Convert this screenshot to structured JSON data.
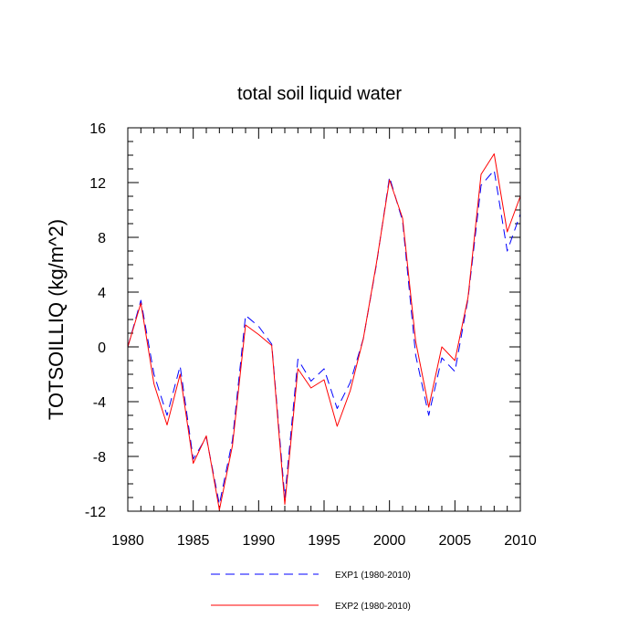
{
  "chart_data": {
    "type": "line",
    "title": "total soil liquid water",
    "xlabel": "",
    "ylabel": "TOTSOILLIQ  (kg/m^2)",
    "xlim": [
      1980,
      2010
    ],
    "ylim": [
      -12,
      16
    ],
    "x_ticks": [
      1980,
      1985,
      1990,
      1995,
      2000,
      2005,
      2010
    ],
    "y_ticks": [
      -12,
      -8,
      -4,
      0,
      4,
      8,
      12,
      16
    ],
    "x_tick_labels": [
      "1980",
      "1985",
      "1990",
      "1995",
      "2000",
      "2005",
      "2010"
    ],
    "y_tick_labels": [
      "-12",
      "-8",
      "-4",
      "0",
      "4",
      "8",
      "12",
      "16"
    ],
    "grid": false,
    "legend_position": "bottom",
    "x": [
      1980,
      1981,
      1982,
      1983,
      1984,
      1985,
      1986,
      1987,
      1988,
      1989,
      1990,
      1991,
      1992,
      1993,
      1994,
      1995,
      1996,
      1997,
      1998,
      1999,
      2000,
      2001,
      2002,
      2003,
      2004,
      2005,
      2006,
      2007,
      2008,
      2009,
      2010
    ],
    "series": [
      {
        "name": "EXP1 (1980-2010)",
        "color": "#0000ff",
        "dash": "dashed",
        "values": [
          0.0,
          3.4,
          -2.0,
          -5.0,
          -1.4,
          -8.2,
          -6.6,
          -11.5,
          -6.8,
          2.3,
          1.5,
          0.2,
          -11.0,
          -0.9,
          -2.5,
          -1.6,
          -4.5,
          -2.6,
          0.6,
          6.0,
          12.4,
          9.2,
          -0.6,
          -5.0,
          -0.8,
          -1.8,
          3.5,
          11.8,
          12.9,
          7.0,
          9.7
        ]
      },
      {
        "name": "EXP2 (1980-2010)",
        "color": "#ff0000",
        "dash": "solid",
        "values": [
          0.0,
          3.2,
          -2.7,
          -5.7,
          -2.0,
          -8.5,
          -6.5,
          -11.9,
          -7.2,
          1.6,
          0.9,
          0.1,
          -11.5,
          -1.6,
          -3.0,
          -2.4,
          -5.8,
          -3.2,
          0.6,
          6.1,
          12.2,
          9.4,
          0.4,
          -4.4,
          0.0,
          -1.0,
          3.6,
          12.6,
          14.1,
          8.4,
          11.0
        ]
      }
    ]
  }
}
